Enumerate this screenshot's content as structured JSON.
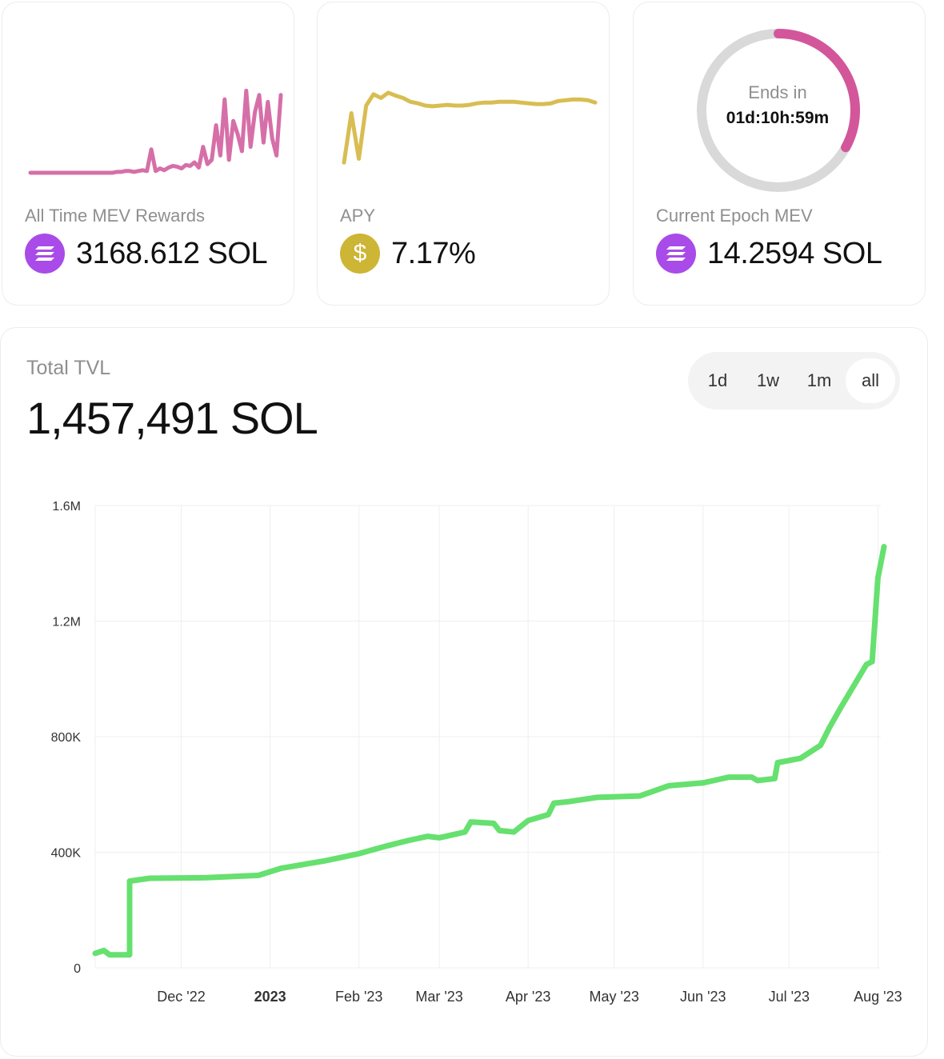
{
  "cards": {
    "mev": {
      "label": "All Time MEV Rewards",
      "value": "3168.612 SOL",
      "icon": "solana-icon",
      "color": "#d66fa8"
    },
    "apy": {
      "label": "APY",
      "value": "7.17%",
      "icon": "dollar-icon",
      "icon_glyph": "$",
      "color": "#d8bd52"
    },
    "epoch": {
      "label": "Current Epoch MEV",
      "value": "14.2594 SOL",
      "icon": "solana-icon",
      "ring_label": "Ends in",
      "ring_time": "01d:10h:59m",
      "progress": 0.33,
      "color": "#d3569a"
    }
  },
  "tvl": {
    "title": "Total TVL",
    "value": "1,457,491 SOL",
    "ranges": [
      "1d",
      "1w",
      "1m",
      "all"
    ],
    "active_range": "all"
  },
  "chart_data": {
    "type": "line",
    "title": "Total TVL",
    "color": "#66e06f",
    "xlabel": "",
    "ylabel": "",
    "ylim": [
      0,
      1600000
    ],
    "y_ticks": [
      0,
      400000,
      800000,
      1200000,
      1600000
    ],
    "y_tick_labels": [
      "0",
      "400K",
      "800K",
      "1.2M",
      "1.6M"
    ],
    "x_range": [
      "2022-11-01",
      "2023-08-02"
    ],
    "x_ticks": [
      {
        "date": "2022-12-01",
        "label": "Dec '22",
        "bold": false
      },
      {
        "date": "2023-01-01",
        "label": "2023",
        "bold": true
      },
      {
        "date": "2023-02-01",
        "label": "Feb '23",
        "bold": false
      },
      {
        "date": "2023-03-01",
        "label": "Mar '23",
        "bold": false
      },
      {
        "date": "2023-04-01",
        "label": "Apr '23",
        "bold": false
      },
      {
        "date": "2023-05-01",
        "label": "May '23",
        "bold": false
      },
      {
        "date": "2023-06-01",
        "label": "Jun '23",
        "bold": false
      },
      {
        "date": "2023-07-01",
        "label": "Jul '23",
        "bold": false
      },
      {
        "date": "2023-08-01",
        "label": "Aug '23",
        "bold": false
      }
    ],
    "series": [
      {
        "name": "TVL",
        "points": [
          [
            "2022-11-01",
            50000
          ],
          [
            "2022-11-04",
            60000
          ],
          [
            "2022-11-06",
            45000
          ],
          [
            "2022-11-13",
            45000
          ],
          [
            "2022-11-13",
            300000
          ],
          [
            "2022-11-20",
            310000
          ],
          [
            "2022-12-10",
            312000
          ],
          [
            "2022-12-28",
            320000
          ],
          [
            "2023-01-05",
            345000
          ],
          [
            "2023-01-20",
            370000
          ],
          [
            "2023-02-01",
            395000
          ],
          [
            "2023-02-10",
            420000
          ],
          [
            "2023-02-18",
            440000
          ],
          [
            "2023-02-25",
            455000
          ],
          [
            "2023-03-01",
            450000
          ],
          [
            "2023-03-10",
            470000
          ],
          [
            "2023-03-12",
            505000
          ],
          [
            "2023-03-20",
            500000
          ],
          [
            "2023-03-22",
            475000
          ],
          [
            "2023-03-27",
            470000
          ],
          [
            "2023-04-01",
            510000
          ],
          [
            "2023-04-08",
            530000
          ],
          [
            "2023-04-10",
            570000
          ],
          [
            "2023-04-15",
            575000
          ],
          [
            "2023-04-25",
            590000
          ],
          [
            "2023-05-10",
            595000
          ],
          [
            "2023-05-20",
            630000
          ],
          [
            "2023-06-01",
            640000
          ],
          [
            "2023-06-10",
            660000
          ],
          [
            "2023-06-18",
            660000
          ],
          [
            "2023-06-20",
            648000
          ],
          [
            "2023-06-26",
            655000
          ],
          [
            "2023-06-27",
            710000
          ],
          [
            "2023-07-05",
            725000
          ],
          [
            "2023-07-12",
            770000
          ],
          [
            "2023-07-15",
            830000
          ],
          [
            "2023-07-19",
            900000
          ],
          [
            "2023-07-22",
            950000
          ],
          [
            "2023-07-25",
            1000000
          ],
          [
            "2023-07-28",
            1050000
          ],
          [
            "2023-07-30",
            1060000
          ],
          [
            "2023-08-01",
            1350000
          ],
          [
            "2023-08-02",
            1400000
          ],
          [
            "2023-08-05",
            1457491
          ]
        ]
      }
    ]
  },
  "mev_spark": [
    0,
    0,
    0,
    0,
    0,
    0,
    0,
    0,
    0,
    0,
    0,
    0,
    0,
    0,
    0,
    0,
    0,
    0,
    0,
    0,
    0.01,
    0.01,
    0.02,
    0.02,
    0.01,
    0.02,
    0.03,
    0.02,
    0.27,
    0.02,
    0.05,
    0.03,
    0.06,
    0.08,
    0.07,
    0.05,
    0.09,
    0.08,
    0.12,
    0.06,
    0.3,
    0.1,
    0.15,
    0.55,
    0.2,
    0.85,
    0.15,
    0.6,
    0.45,
    0.25,
    0.95,
    0.3,
    0.7,
    0.9,
    0.35,
    0.82,
    0.4,
    0.2,
    0.9
  ],
  "apy_spark": [
    0.05,
    0.7,
    0.1,
    0.8,
    0.95,
    0.9,
    0.97,
    0.93,
    0.9,
    0.85,
    0.83,
    0.8,
    0.79,
    0.8,
    0.81,
    0.8,
    0.8,
    0.81,
    0.83,
    0.84,
    0.84,
    0.85,
    0.85,
    0.85,
    0.84,
    0.83,
    0.82,
    0.82,
    0.83,
    0.86,
    0.87,
    0.88,
    0.88,
    0.87,
    0.84
  ]
}
